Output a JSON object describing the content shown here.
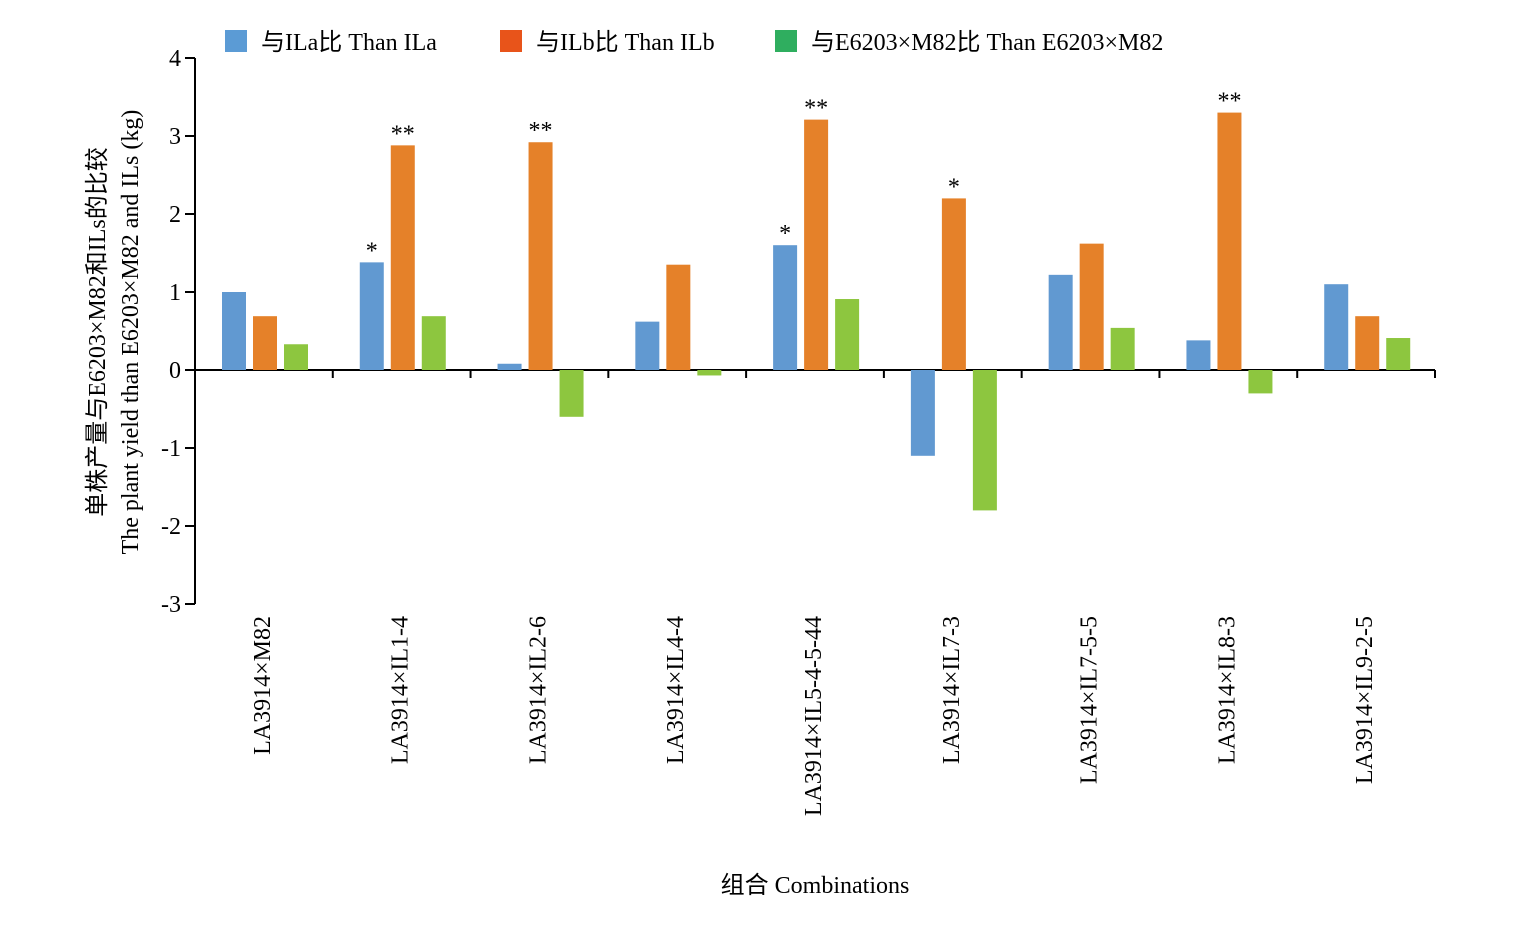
{
  "chart_data": {
    "type": "bar",
    "title": "",
    "xlabel": "组合 Combinations",
    "ylabel_lines": [
      "单株产量与E6203×M82和ILs的比较",
      "The plant yield than E6203×M82 and ILs (kg)"
    ],
    "ylim": [
      -3,
      4
    ],
    "yticks": [
      -3,
      -2,
      -1,
      0,
      1,
      2,
      3,
      4
    ],
    "grid": false,
    "legend_position": "top",
    "categories": [
      "LA3914×M82",
      "LA3914×IL1-4",
      "LA3914×IL2-6",
      "LA3914×IL4-4",
      "LA3914×IL5-4-5-44",
      "LA3914×IL7-3",
      "LA3914×IL7-5-5",
      "LA3914×IL8-3",
      "LA3914×IL9-2-5"
    ],
    "series": [
      {
        "name": "与ILa比 Than ILa",
        "legend_color": "#5b9bd5",
        "bar_color": "#6199d1",
        "values": [
          1.0,
          1.38,
          0.08,
          0.62,
          1.6,
          -1.1,
          1.22,
          0.38,
          1.1
        ],
        "significance": [
          "",
          "*",
          "",
          "",
          "*",
          "",
          "",
          "",
          ""
        ]
      },
      {
        "name": "与ILb比 Than ILb",
        "legend_color": "#e8541a",
        "bar_color": "#e58129",
        "values": [
          0.69,
          2.88,
          2.92,
          1.35,
          3.21,
          2.2,
          1.62,
          3.3,
          0.69
        ],
        "significance": [
          "",
          "**",
          "**",
          "",
          "**",
          "*",
          "",
          "**",
          ""
        ]
      },
      {
        "name": "与E6203×M82比 Than E6203×M82",
        "legend_color": "#2fae5f",
        "bar_color": "#8dc63f",
        "values": [
          0.33,
          0.69,
          -0.6,
          -0.07,
          0.91,
          -1.8,
          0.54,
          -0.3,
          0.41
        ],
        "significance": [
          "",
          "",
          "",
          "",
          "",
          "",
          "",
          "",
          ""
        ]
      }
    ]
  }
}
